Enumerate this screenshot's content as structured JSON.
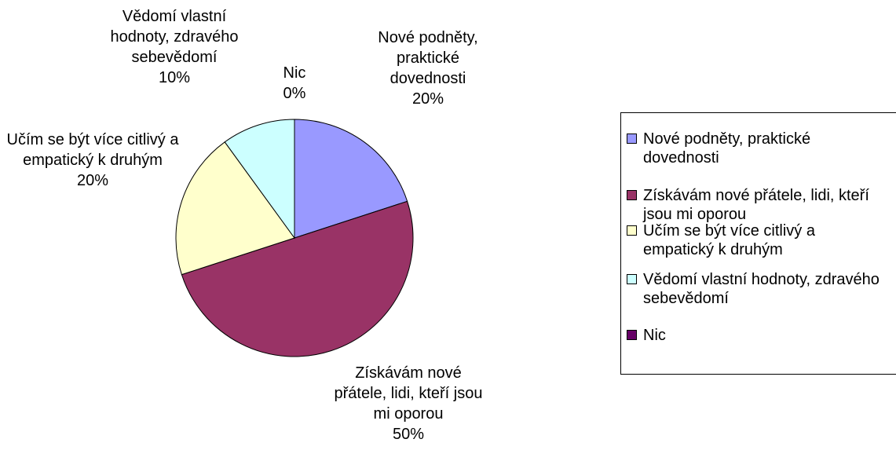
{
  "chart_data": {
    "type": "pie",
    "categories": [
      "Nové podněty, praktické dovednosti",
      "Získávám nové přátele, lidi, kteří jsou mi oporou",
      "Učím se být více citlivý a empatický k druhým",
      "Vědomí vlastní hodnoty, zdravého sebevědomí",
      "Nic"
    ],
    "values": [
      20,
      50,
      20,
      10,
      0
    ],
    "value_labels": [
      "20%",
      "50%",
      "20%",
      "10%",
      "0%"
    ],
    "colors": [
      "#9999ff",
      "#993366",
      "#ffffcc",
      "#ccffff",
      "#660066"
    ],
    "legend": "right"
  }
}
